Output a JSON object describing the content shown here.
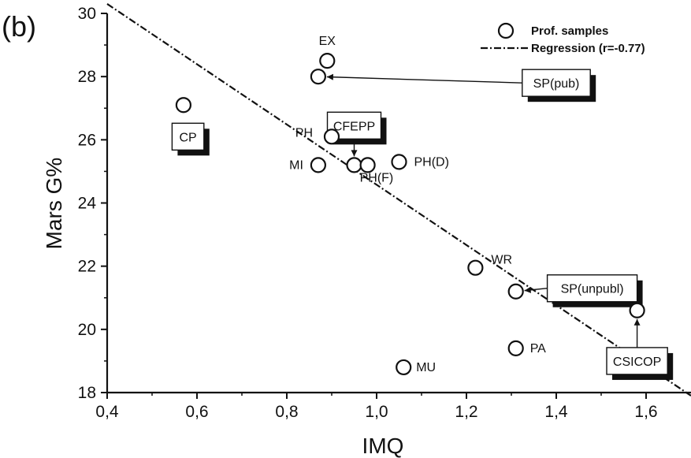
{
  "panel_label": "(b)",
  "chart_data": {
    "type": "scatter",
    "title": "",
    "xlabel": "IMQ",
    "ylabel": "Mars G%",
    "xlim": [
      0.4,
      1.7
    ],
    "ylim": [
      18,
      30
    ],
    "xticks": [
      0.4,
      0.6,
      0.8,
      1.0,
      1.2,
      1.4,
      1.6
    ],
    "xtick_labels": [
      "0,4",
      "0,6",
      "0,8",
      "1,0",
      "1,2",
      "1,4",
      "1,6"
    ],
    "yticks": [
      18,
      20,
      22,
      24,
      26,
      28,
      30
    ],
    "ytick_labels": [
      "18",
      "20",
      "22",
      "24",
      "26",
      "28",
      "30"
    ],
    "grid": false,
    "legend_position": "top-right",
    "series": [
      {
        "name": "Prof. samples",
        "marker": "open-circle",
        "points": [
          {
            "x": 0.89,
            "y": 28.5,
            "label": "EX"
          },
          {
            "x": 0.87,
            "y": 28.0,
            "label": ""
          },
          {
            "x": 0.57,
            "y": 27.1,
            "label": ""
          },
          {
            "x": 0.9,
            "y": 26.1,
            "label": "PH"
          },
          {
            "x": 0.87,
            "y": 25.2,
            "label": "MI"
          },
          {
            "x": 0.95,
            "y": 25.2,
            "label": ""
          },
          {
            "x": 0.98,
            "y": 25.2,
            "label": "PH(F)"
          },
          {
            "x": 1.05,
            "y": 25.3,
            "label": "PH(D)"
          },
          {
            "x": 1.22,
            "y": 21.95,
            "label": "WR"
          },
          {
            "x": 1.31,
            "y": 21.2,
            "label": ""
          },
          {
            "x": 1.58,
            "y": 20.6,
            "label": ""
          },
          {
            "x": 1.31,
            "y": 19.4,
            "label": "PA"
          },
          {
            "x": 1.06,
            "y": 18.8,
            "label": "MU"
          }
        ]
      },
      {
        "name": "Regression (r=-0.77)",
        "type": "line",
        "style": "dash-dot",
        "points": [
          {
            "x": 0.4,
            "y": 30.3
          },
          {
            "x": 1.7,
            "y": 17.9
          }
        ]
      }
    ],
    "callouts": [
      {
        "text": "SP(pub)",
        "x": 1.4,
        "y": 27.8,
        "target_x": 0.87,
        "target_y": 28.0
      },
      {
        "text": "CP",
        "x": 0.58,
        "y": 26.1,
        "target_x": null,
        "target_y": null
      },
      {
        "text": "CFEPP",
        "x": 0.95,
        "y": 26.45,
        "target_x": 0.95,
        "target_y": 25.2
      },
      {
        "text": "SP(unpubl)",
        "x": 1.48,
        "y": 21.3,
        "target_x": 1.31,
        "target_y": 21.2
      },
      {
        "text": "CSICOP",
        "x": 1.58,
        "y": 19.0,
        "target_x": 1.58,
        "target_y": 20.6
      }
    ]
  }
}
